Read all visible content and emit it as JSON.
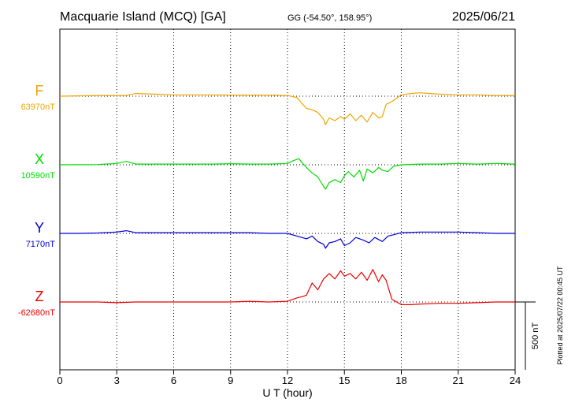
{
  "header": {
    "station": "Macquarie Island (MCQ)  [GA]",
    "coords": "GG (-54.50°, 158.95°)",
    "date": "2025/06/21"
  },
  "footer": {
    "xlabel": "U T (hour)",
    "plotted": "Plotted at 2025/07/22 00:45 UT"
  },
  "scale_bar": {
    "label": "500 nT",
    "value_nT": 500
  },
  "chart_data": {
    "type": "line",
    "title": "Macquarie Island (MCQ)  [GA]",
    "xlabel": "U T (hour)",
    "xlim": [
      0,
      24
    ],
    "xticks": [
      0,
      3,
      6,
      9,
      12,
      15,
      18,
      21,
      24
    ],
    "grid": true,
    "series": [
      {
        "name": "F",
        "baseline_label": "63970nT",
        "color": "#f0a500",
        "x": [
          0,
          2,
          3.5,
          4,
          5,
          6,
          7,
          8,
          9,
          10,
          11,
          12,
          12.5,
          12.8,
          13,
          13.3,
          13.6,
          13.9,
          14,
          14.2,
          14.5,
          14.8,
          15,
          15.3,
          15.6,
          15.9,
          16.2,
          16.5,
          16.8,
          17,
          17.2,
          17.5,
          18,
          18.5,
          19,
          19.5,
          20,
          21,
          22,
          23,
          24
        ],
        "y": [
          0,
          5,
          5,
          20,
          15,
          10,
          10,
          10,
          8,
          8,
          8,
          5,
          -10,
          -60,
          -90,
          -100,
          -120,
          -170,
          -210,
          -160,
          -180,
          -150,
          -170,
          -130,
          -180,
          -140,
          -190,
          -120,
          -160,
          -150,
          -60,
          -40,
          10,
          20,
          25,
          20,
          15,
          10,
          10,
          5,
          5
        ]
      },
      {
        "name": "X",
        "baseline_label": "10590nT",
        "color": "#00dd00",
        "x": [
          0,
          2,
          3,
          3.5,
          4,
          5,
          6,
          7,
          8,
          9,
          10,
          11,
          12,
          12.3,
          12.6,
          12.8,
          13,
          13.3,
          13.6,
          13.9,
          14,
          14.2,
          14.5,
          14.8,
          15,
          15.2,
          15.5,
          15.8,
          16,
          16.2,
          16.5,
          16.8,
          17,
          17.3,
          17.6,
          18,
          19,
          20,
          21,
          22,
          23,
          24
        ],
        "y": [
          0,
          2,
          10,
          25,
          5,
          5,
          5,
          5,
          5,
          8,
          5,
          5,
          10,
          30,
          45,
          10,
          -20,
          -60,
          -90,
          -160,
          -180,
          -130,
          -110,
          -130,
          -80,
          -50,
          -90,
          -40,
          -120,
          -30,
          -60,
          -20,
          -40,
          -50,
          -10,
          0,
          5,
          5,
          10,
          5,
          10,
          5
        ]
      },
      {
        "name": "Y",
        "baseline_label": "7170nT",
        "color": "#0000dd",
        "x": [
          0,
          1,
          2,
          3,
          3.5,
          4,
          5,
          6,
          7,
          8,
          9,
          10,
          11,
          12,
          12.5,
          13,
          13.3,
          13.6,
          13.9,
          14,
          14.2,
          14.5,
          14.8,
          15,
          15.3,
          15.6,
          16,
          16.3,
          16.6,
          17,
          17.3,
          17.6,
          18,
          19,
          20,
          21,
          22,
          23,
          24
        ],
        "y": [
          0,
          0,
          3,
          10,
          20,
          5,
          5,
          5,
          5,
          5,
          5,
          5,
          0,
          0,
          -20,
          -40,
          -20,
          -60,
          -80,
          -110,
          -70,
          -60,
          -40,
          -90,
          -70,
          -30,
          -50,
          -70,
          -30,
          -60,
          -20,
          -10,
          5,
          10,
          10,
          10,
          5,
          0,
          0
        ]
      },
      {
        "name": "Z",
        "baseline_label": "-62680nT",
        "color": "#ee0000",
        "x": [
          0,
          2,
          3,
          4,
          6,
          8,
          9,
          10,
          11,
          12,
          12.5,
          12.8,
          13,
          13.3,
          13.6,
          13.9,
          14.2,
          14.5,
          14.8,
          15,
          15.3,
          15.6,
          15.9,
          16.2,
          16.5,
          16.8,
          17,
          17.2,
          17.5,
          18,
          18.5,
          19,
          20,
          21,
          22,
          23,
          24
        ],
        "y": [
          0,
          0,
          -5,
          0,
          0,
          0,
          0,
          5,
          0,
          5,
          30,
          40,
          50,
          140,
          90,
          170,
          210,
          170,
          230,
          190,
          210,
          170,
          220,
          160,
          240,
          150,
          200,
          160,
          20,
          -20,
          -20,
          -15,
          -10,
          -10,
          -5,
          0,
          0
        ]
      }
    ]
  }
}
